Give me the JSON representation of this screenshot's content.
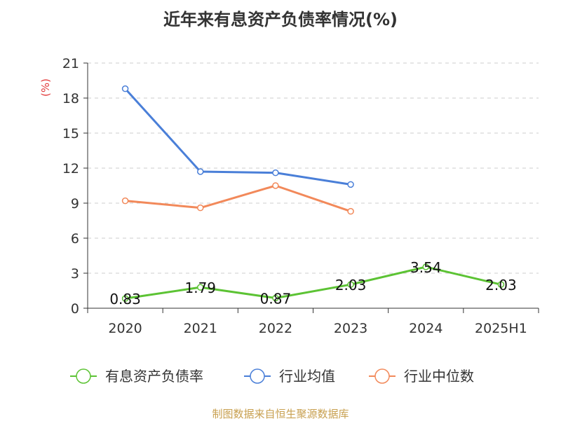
{
  "chart_data": {
    "type": "line",
    "title": "近年来有息资产负债率情况(%)",
    "ylabel": "(%)",
    "categories": [
      "2020",
      "2021",
      "2022",
      "2023",
      "2024",
      "2025H1"
    ],
    "ylim": [
      0,
      21
    ],
    "yticks": [
      0,
      3,
      6,
      9,
      12,
      15,
      18,
      21
    ],
    "grid": true,
    "legend_position": "bottom",
    "series": [
      {
        "name": "有息资产负债率",
        "color": "#5cc334",
        "values": [
          0.83,
          1.79,
          0.87,
          2.03,
          3.54,
          2.03
        ],
        "labels": [
          "0.83",
          "1.79",
          "0.87",
          "2.03",
          "3.54",
          "2.03"
        ]
      },
      {
        "name": "行业均值",
        "color": "#4a7fd8",
        "values": [
          18.8,
          11.7,
          11.6,
          10.6,
          null,
          null
        ]
      },
      {
        "name": "行业中位数",
        "color": "#f2895a",
        "values": [
          9.2,
          8.6,
          10.5,
          8.3,
          null,
          null
        ]
      }
    ]
  },
  "footer": "制图数据来自恒生聚源数据库",
  "colors": {
    "axis": "#333333",
    "grid": "#cccccc",
    "ylabel": "#e23b3b",
    "footer": "#c8a050"
  }
}
